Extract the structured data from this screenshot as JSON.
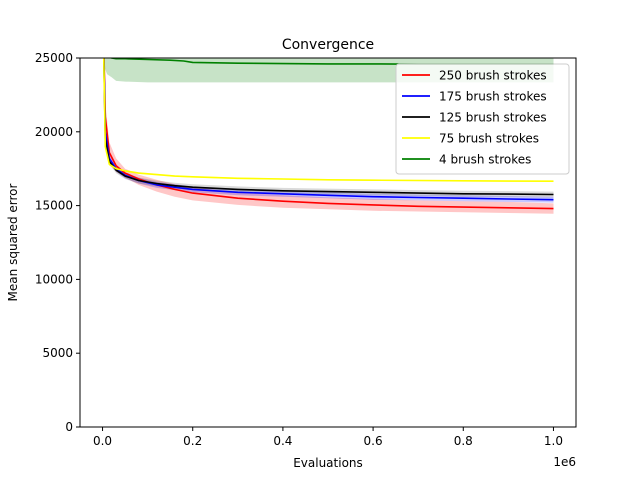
{
  "chart_data": {
    "type": "line",
    "title": "Convergence",
    "xlabel": "Evaluations",
    "ylabel": "Mean squared error",
    "x_offset_label": "1e6",
    "xlim": [
      -0.05,
      1.05
    ],
    "ylim": [
      0,
      25000
    ],
    "xticks": [
      0.0,
      0.2,
      0.4,
      0.6,
      0.8,
      1.0
    ],
    "xtick_labels": [
      "0.0",
      "0.2",
      "0.4",
      "0.6",
      "0.8",
      "1.0"
    ],
    "yticks": [
      0,
      5000,
      10000,
      15000,
      20000,
      25000
    ],
    "ytick_labels": [
      "0",
      "5000",
      "10000",
      "15000",
      "20000",
      "25000"
    ],
    "legend_position": "upper-right",
    "series": [
      {
        "name": "250 brush strokes",
        "color": "#ff0000",
        "band_color": "#ff0000",
        "x": [
          0.0,
          0.006,
          0.015,
          0.03,
          0.05,
          0.08,
          0.12,
          0.16,
          0.2,
          0.3,
          0.4,
          0.5,
          0.6,
          0.7,
          0.8,
          0.9,
          1.0
        ],
        "mean": [
          30000,
          21000,
          18600,
          17700,
          17200,
          16800,
          16400,
          16100,
          15850,
          15500,
          15300,
          15150,
          15050,
          14950,
          14900,
          14850,
          14800
        ],
        "lower": [
          30000,
          20200,
          18100,
          17300,
          16900,
          16400,
          15950,
          15600,
          15350,
          15050,
          14850,
          14750,
          14650,
          14600,
          14550,
          14500,
          14450
        ],
        "upper": [
          30000,
          22000,
          19300,
          18200,
          17500,
          17100,
          16750,
          16450,
          16250,
          15900,
          15700,
          15550,
          15450,
          15350,
          15300,
          15250,
          15150
        ]
      },
      {
        "name": "175 brush strokes",
        "color": "#0000ff",
        "band_color": "#0000ff",
        "x": [
          0.0,
          0.006,
          0.015,
          0.03,
          0.05,
          0.08,
          0.12,
          0.16,
          0.2,
          0.3,
          0.4,
          0.5,
          0.6,
          0.7,
          0.8,
          0.9,
          1.0
        ],
        "mean": [
          30000,
          20000,
          18200,
          17500,
          17050,
          16700,
          16400,
          16250,
          16100,
          15900,
          15800,
          15700,
          15600,
          15550,
          15500,
          15450,
          15400
        ],
        "lower": [
          30000,
          19600,
          17900,
          17300,
          16850,
          16500,
          16200,
          16050,
          15900,
          15700,
          15600,
          15500,
          15400,
          15350,
          15300,
          15250,
          15200
        ],
        "upper": [
          30000,
          20500,
          18500,
          17700,
          17250,
          16900,
          16600,
          16450,
          16300,
          16100,
          16000,
          15900,
          15800,
          15750,
          15700,
          15650,
          15600
        ]
      },
      {
        "name": "125 brush strokes",
        "color": "#000000",
        "band_color": "#555555",
        "x": [
          0.0,
          0.006,
          0.015,
          0.03,
          0.05,
          0.08,
          0.12,
          0.16,
          0.2,
          0.3,
          0.4,
          0.5,
          0.6,
          0.7,
          0.8,
          0.9,
          1.0
        ],
        "mean": [
          30000,
          19500,
          18000,
          17400,
          17000,
          16700,
          16500,
          16350,
          16250,
          16100,
          16000,
          15950,
          15900,
          15850,
          15800,
          15780,
          15750
        ],
        "lower": [
          30000,
          19200,
          17800,
          17200,
          16800,
          16500,
          16300,
          16150,
          16050,
          15900,
          15800,
          15750,
          15700,
          15650,
          15600,
          15580,
          15550
        ],
        "upper": [
          30000,
          19800,
          18200,
          17600,
          17200,
          16900,
          16700,
          16550,
          16450,
          16300,
          16200,
          16150,
          16100,
          16050,
          16000,
          15980,
          15950
        ]
      },
      {
        "name": "75 brush strokes",
        "color": "#ffff00",
        "band_color": "#ffff00",
        "x": [
          0.0,
          0.006,
          0.015,
          0.03,
          0.05,
          0.08,
          0.12,
          0.16,
          0.2,
          0.3,
          0.4,
          0.5,
          0.6,
          0.7,
          0.8,
          0.9,
          1.0
        ],
        "mean": [
          30000,
          19000,
          17800,
          17500,
          17350,
          17200,
          17100,
          17000,
          16950,
          16850,
          16800,
          16750,
          16720,
          16700,
          16680,
          16660,
          16650
        ],
        "lower": [
          30000,
          18800,
          17700,
          17420,
          17280,
          17140,
          17040,
          16950,
          16900,
          16800,
          16750,
          16700,
          16670,
          16650,
          16630,
          16610,
          16600
        ],
        "upper": [
          30000,
          19200,
          17900,
          17580,
          17420,
          17260,
          17160,
          17050,
          17000,
          16900,
          16850,
          16800,
          16770,
          16750,
          16730,
          16710,
          16700
        ]
      },
      {
        "name": "4 brush strokes",
        "color": "#008000",
        "band_color": "#008000",
        "x": [
          0.0,
          0.002,
          0.005,
          0.01,
          0.02,
          0.03,
          0.05,
          0.1,
          0.15,
          0.18,
          0.2,
          0.3,
          0.4,
          0.5,
          0.6,
          0.7,
          0.8,
          0.9,
          1.0
        ],
        "mean": [
          30000,
          26500,
          25500,
          25100,
          25000,
          24950,
          24950,
          24900,
          24850,
          24800,
          24700,
          24650,
          24620,
          24600,
          24600,
          24580,
          24580,
          24580,
          24580
        ],
        "lower": [
          30000,
          26000,
          24300,
          23900,
          23700,
          23450,
          23400,
          23350,
          23350,
          23350,
          23350,
          23350,
          23350,
          23350,
          23350,
          23350,
          23350,
          23350,
          23350
        ],
        "upper": [
          30000,
          27000,
          26000,
          26000,
          26000,
          26000,
          26000,
          26000,
          26000,
          26000,
          26000,
          26000,
          26000,
          26000,
          26000,
          26000,
          26000,
          26000,
          26000
        ]
      }
    ]
  }
}
